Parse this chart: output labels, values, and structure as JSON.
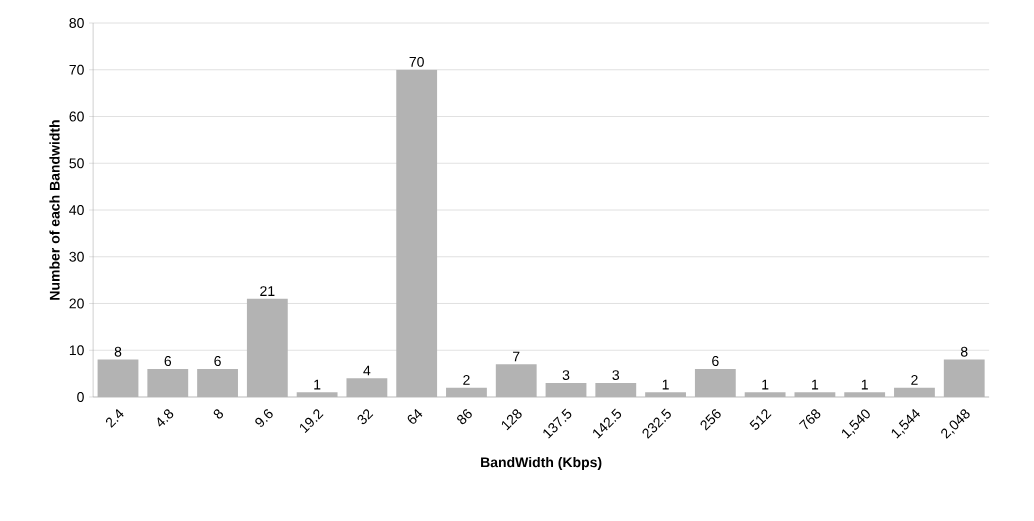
{
  "chart_data": {
    "type": "bar",
    "xlabel": "BandWidth (Kbps)",
    "ylabel": "Number of each Bandwidth",
    "categories": [
      "2.4",
      "4.8",
      "8",
      "9.6",
      "19.2",
      "32",
      "64",
      "86",
      "128",
      "137.5",
      "142.5",
      "232.5",
      "256",
      "512",
      "768",
      "1,540",
      "1,544",
      "2,048"
    ],
    "values": [
      8,
      6,
      6,
      21,
      1,
      4,
      70,
      2,
      7,
      3,
      3,
      1,
      6,
      1,
      1,
      1,
      2,
      8
    ],
    "color": "#b3b3b3",
    "ylim": [
      0,
      80
    ],
    "yticks": [
      0,
      10,
      20,
      30,
      40,
      50,
      60,
      70,
      80
    ],
    "grid": "y",
    "data_labels": true
  }
}
